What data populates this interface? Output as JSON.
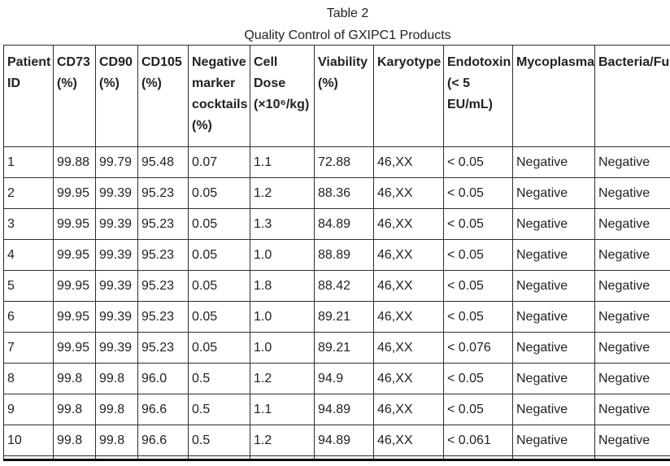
{
  "colors": {
    "text": "#222222",
    "border": "#2e2e2e",
    "background": "#ffffff"
  },
  "caption": {
    "line1": "Table 2",
    "line2": "Quality Control of GXIPC1 Products"
  },
  "table": {
    "columns": [
      {
        "key": "patient_id",
        "label": "Patient ID"
      },
      {
        "key": "cd73",
        "label": "CD73 (%)"
      },
      {
        "key": "cd90",
        "label": "CD90 (%)"
      },
      {
        "key": "cd105",
        "label": "CD105 (%)"
      },
      {
        "key": "negative_marker_cocktails",
        "label": "Negative marker cocktails (%)"
      },
      {
        "key": "cell_dose",
        "label": "Cell Dose (×10⁶/kg)"
      },
      {
        "key": "viability",
        "label": "Viability (%)"
      },
      {
        "key": "karyotype",
        "label": "Karyotype"
      },
      {
        "key": "endotoxin",
        "label": "Endotoxin (< 5 EU/mL)"
      },
      {
        "key": "mycoplasma",
        "label": "Mycoplasma"
      },
      {
        "key": "bacteria_fungi",
        "label": "Bacteria/Fu"
      }
    ],
    "rows": [
      [
        "1",
        "99.88",
        "99.79",
        "95.48",
        "0.07",
        "1.1",
        "72.88",
        "46,XX",
        "< 0.05",
        "Negative",
        "Negative"
      ],
      [
        "2",
        "99.95",
        "99.39",
        "95.23",
        "0.05",
        "1.2",
        "88.36",
        "46,XX",
        "< 0.05",
        "Negative",
        "Negative"
      ],
      [
        "3",
        "99.95",
        "99.39",
        "95.23",
        "0.05",
        "1.3",
        "84.89",
        "46,XX",
        "< 0.05",
        "Negative",
        "Negative"
      ],
      [
        "4",
        "99.95",
        "99.39",
        "95.23",
        "0.05",
        "1.0",
        "88.89",
        "46,XX",
        "< 0.05",
        "Negative",
        "Negative"
      ],
      [
        "5",
        "99.95",
        "99.39",
        "95.23",
        "0.05",
        "1.8",
        "88.42",
        "46,XX",
        "< 0.05",
        "Negative",
        "Negative"
      ],
      [
        "6",
        "99.95",
        "99.39",
        "95.23",
        "0.05",
        "1.0",
        "89.21",
        "46,XX",
        "< 0.05",
        "Negative",
        "Negative"
      ],
      [
        "7",
        "99.95",
        "99.39",
        "95.23",
        "0.05",
        "1.0",
        "89.21",
        "46,XX",
        "< 0.076",
        "Negative",
        "Negative"
      ],
      [
        "8",
        "99.8",
        "99.8",
        "96.0",
        "0.5",
        "1.2",
        "94.9",
        "46,XX",
        "< 0.05",
        "Negative",
        "Negative"
      ],
      [
        "9",
        "99.8",
        "99.8",
        "96.6",
        "0.5",
        "1.1",
        "94.89",
        "46,XX",
        "< 0.05",
        "Negative",
        "Negative"
      ],
      [
        "10",
        "99.8",
        "99.8",
        "96.6",
        "0.5",
        "1.2",
        "94.89",
        "46,XX",
        "< 0.061",
        "Negative",
        "Negative"
      ]
    ]
  }
}
